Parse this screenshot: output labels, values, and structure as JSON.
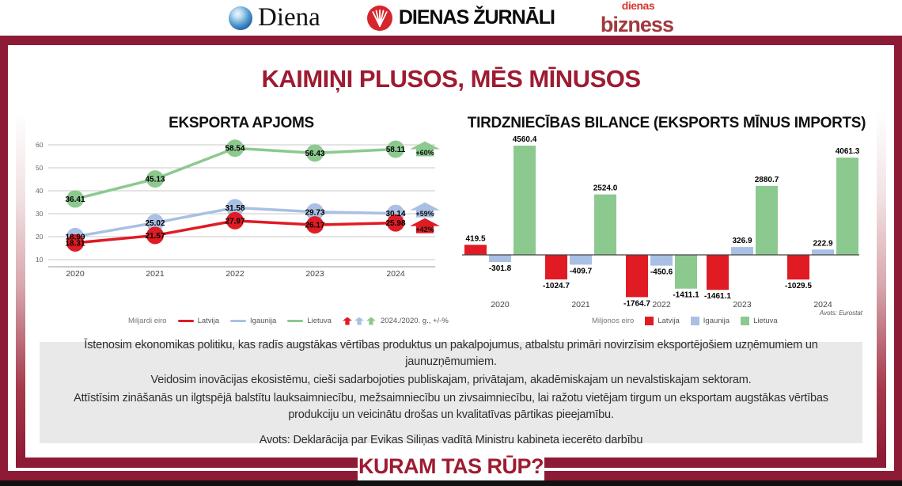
{
  "colors": {
    "dark_red": "#8e1b35",
    "title_red": "#9e1b31",
    "latvija": "#e01b24",
    "igaunija": "#a9c0e4",
    "lietuva": "#8cc98f"
  },
  "header": {
    "diena": "Diena",
    "zurnali": "DIENAS ŽURNĀLI",
    "bizness_top": "dienas",
    "bizness_bottom": "bizness"
  },
  "title": "KAIMIŅI PLUSOS, MĒS MĪNUSOS",
  "chart_data": [
    {
      "type": "line",
      "title": "EKSPORTA APJOMS",
      "unit_label": "Miljardi eiro",
      "x": [
        "2020",
        "2021",
        "2022",
        "2023",
        "2024"
      ],
      "ylim": [
        10,
        60
      ],
      "yticks": [
        10,
        20,
        30,
        40,
        50,
        60
      ],
      "grid": true,
      "legend_position": "bottom",
      "legend_note": "2024./2020. g., +/-%",
      "series": [
        {
          "name": "Latvija",
          "color": "#e01b24",
          "values": [
            18.31,
            21.57,
            27.97,
            26.17,
            25.98
          ],
          "change_label": "+42%"
        },
        {
          "name": "Igaunija",
          "color": "#a9c0e4",
          "values": [
            18.99,
            25.02,
            31.58,
            29.73,
            30.14
          ],
          "change_label": "+59%"
        },
        {
          "name": "Lietuva",
          "color": "#8cc98f",
          "values": [
            36.41,
            45.13,
            58.54,
            56.43,
            58.11
          ],
          "change_label": "+60%"
        }
      ]
    },
    {
      "type": "bar",
      "title": "TIRDZNIECĪBAS BILANCE (EKSPORTS MĪNUS IMPORTS)",
      "unit_label": "Miljonos eiro",
      "categories": [
        "2020",
        "2021",
        "2022",
        "2023",
        "2024"
      ],
      "legend_position": "bottom",
      "source": "Avots: Eurostat",
      "series": [
        {
          "name": "Latvija",
          "color": "#e01b24",
          "values": [
            419.5,
            -1024.7,
            -1764.7,
            -1461.1,
            -1029.5
          ]
        },
        {
          "name": "Igaunija",
          "color": "#a9c0e4",
          "values": [
            -301.8,
            -409.7,
            -450.6,
            326.9,
            222.9
          ]
        },
        {
          "name": "Lietuva",
          "color": "#8cc98f",
          "values": [
            4560.4,
            2524.0,
            -1411.1,
            2880.7,
            4061.3
          ]
        }
      ]
    }
  ],
  "info_box": {
    "lines": [
      "Īstenosim ekonomikas politiku, kas radīs augstākas vērtības produktus un pakalpojumus, atbalstu primāri novirzīsim eksportējošiem uzņēmumiem un jaunuzņēmumiem.",
      "Veidosim inovācijas ekosistēmu, cieši sadarbojoties publiskajam, privātajam, akadēmiskajam un nevalstiskajam sektoram.",
      "Attīstīsim zināšanās un ilgtspējā balstītu lauksaimniecību, mežsaimniecību un zivsaimniecību, lai ražotu vietējam tirgum un eksportam augstākas vērtības produkciju un veicinātu drošas un kvalitatīvas pārtikas pieejamību."
    ],
    "source": "Avots: Deklarācija par Evikas Siliņas vadītā Ministru kabineta iecerēto darbību"
  },
  "footer": {
    "question": "KURAM TAS RŪP?"
  }
}
